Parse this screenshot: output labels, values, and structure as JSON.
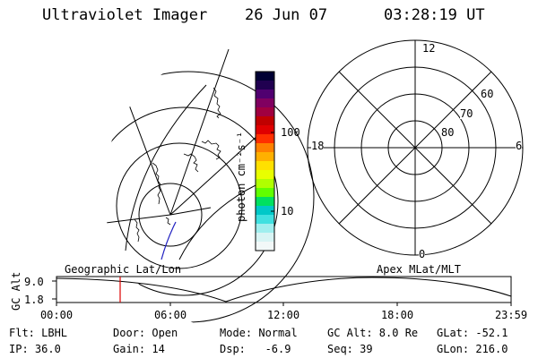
{
  "header": {
    "instrument": "Ultraviolet Imager",
    "date": "26 Jun 07",
    "time": "03:28:19 UT"
  },
  "colorbar": {
    "unit_label": "photon cm⁻²s⁻¹",
    "ticks": [
      "100",
      "10"
    ],
    "colors": [
      "#000033",
      "#200050",
      "#500070",
      "#800060",
      "#a00040",
      "#c00000",
      "#e00000",
      "#ff3000",
      "#ff8000",
      "#ffb000",
      "#ffe000",
      "#e8ff00",
      "#b0ff00",
      "#60ff00",
      "#00e060",
      "#00c8c8",
      "#40e0e0",
      "#a0eeee",
      "#d8f4f4",
      "#f2f8f8"
    ]
  },
  "polar": {
    "mlt_labels": [
      "12",
      "18",
      "6",
      "0"
    ],
    "lat_labels": [
      "60",
      "70",
      "80"
    ]
  },
  "altitude_plot": {
    "axis_label": "GC Alt",
    "y_ticks": [
      "9.0",
      "1.8"
    ],
    "left_label": "Geographic Lat/Lon",
    "right_label": "Apex MLat/MLT",
    "x_ticks": [
      "00:00",
      "06:00",
      "12:00",
      "18:00",
      "23:59"
    ],
    "marker_color": "#dd0000"
  },
  "info": {
    "row1": [
      "Flt: LBHL",
      "Door: Open",
      "Mode: Normal",
      "GC Alt: 8.0 Re",
      "GLat: -52.1"
    ],
    "row2": [
      "IP: 36.0",
      "Gain: 14",
      "Dsp:   -6.9",
      "Seq: 39",
      "GLon: 216.0"
    ]
  }
}
